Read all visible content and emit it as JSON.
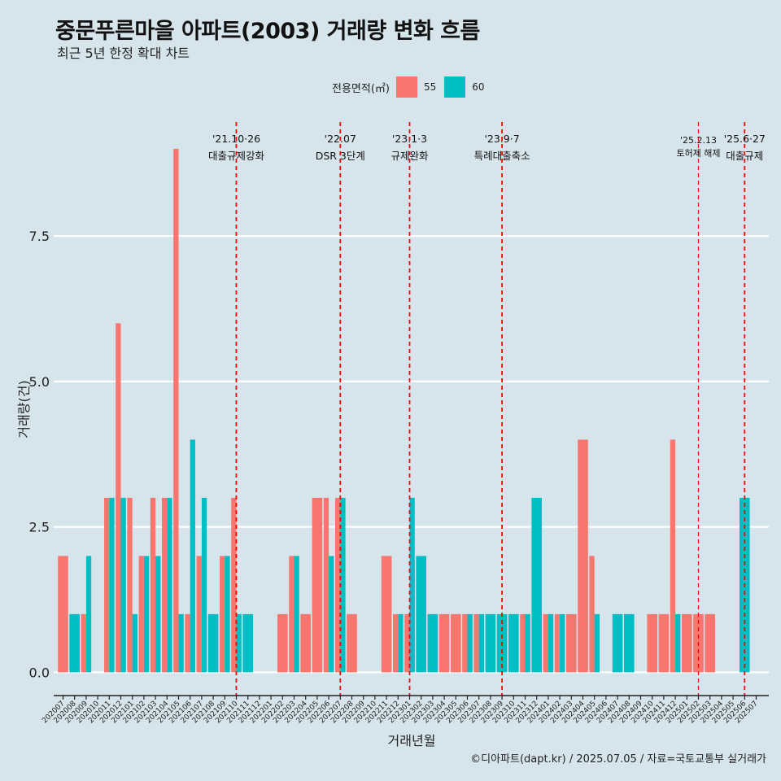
{
  "chart_data": {
    "type": "bar",
    "title": "중문푸른마을 아파트(2003) 거래량 변화 흐름",
    "subtitle": "최근 5년 한정 확대 차트",
    "xlabel": "거래년월",
    "ylabel": "거래량(건)",
    "caption": "©디아파트(dapt.kr) / 2025.07.05 / 자료=국토교통부 실거래가",
    "legend_title": "전용면적(㎡)",
    "ylim": [
      -0.4,
      9.6
    ],
    "yticks": [
      0.0,
      2.5,
      5.0,
      7.5
    ],
    "ytick_labels": [
      "0.0",
      "2.5",
      "5.0",
      "7.5"
    ],
    "categories": [
      "202007",
      "202008",
      "202009",
      "202010",
      "202011",
      "202012",
      "202101",
      "202102",
      "202103",
      "202104",
      "202105",
      "202106",
      "202107",
      "202108",
      "202109",
      "202110",
      "202111",
      "202112",
      "202201",
      "202202",
      "202203",
      "202204",
      "202205",
      "202206",
      "202207",
      "202208",
      "202209",
      "202210",
      "202211",
      "202212",
      "202301",
      "202302",
      "202303",
      "202304",
      "202305",
      "202306",
      "202307",
      "202308",
      "202309",
      "202310",
      "202311",
      "202312",
      "202401",
      "202402",
      "202403",
      "202404",
      "202405",
      "202406",
      "202407",
      "202408",
      "202409",
      "202410",
      "202411",
      "202412",
      "202501",
      "202502",
      "202503",
      "202504",
      "202505",
      "202506",
      "202507"
    ],
    "series": [
      {
        "name": "55",
        "color": "#f8766d",
        "values": [
          2,
          0,
          1,
          0,
          3,
          6,
          3,
          2,
          3,
          3,
          9,
          1,
          2,
          0,
          2,
          3,
          0,
          0,
          0,
          1,
          2,
          1,
          3,
          3,
          3,
          1,
          0,
          0,
          2,
          1,
          1,
          0,
          0,
          1,
          1,
          1,
          1,
          0,
          0,
          0,
          1,
          0,
          1,
          1,
          1,
          4,
          2,
          0,
          0,
          0,
          0,
          1,
          1,
          4,
          1,
          1,
          1,
          0,
          0,
          0,
          0
        ]
      },
      {
        "name": "60",
        "color": "#00bfc4",
        "values": [
          0,
          1,
          2,
          0,
          3,
          3,
          1,
          2,
          2,
          3,
          1,
          4,
          3,
          1,
          2,
          1,
          1,
          0,
          0,
          0,
          2,
          0,
          0,
          2,
          3,
          0,
          0,
          0,
          0,
          1,
          3,
          2,
          1,
          0,
          0,
          1,
          1,
          1,
          1,
          1,
          1,
          3,
          1,
          1,
          0,
          0,
          1,
          0,
          1,
          1,
          0,
          0,
          0,
          1,
          0,
          0,
          0,
          0,
          0,
          3,
          0
        ]
      }
    ],
    "annotations": [
      {
        "x": "202110",
        "date": "'21.10·26",
        "text": "대출규제강화",
        "small": false
      },
      {
        "x": "202207",
        "date": "'22.07",
        "text": "DSR 3단계",
        "small": false
      },
      {
        "x": "202301",
        "date": "'23.1·3",
        "text": "규제완화",
        "small": false
      },
      {
        "x": "202309",
        "date": "'23.9·7",
        "text": "특례대출축소",
        "small": false
      },
      {
        "x": "202502",
        "date": "'25.2.13",
        "text": "토허제 해제",
        "small": true
      },
      {
        "x": "202506",
        "date": "'25.6·27",
        "text": "대출규제",
        "small": false
      }
    ]
  }
}
